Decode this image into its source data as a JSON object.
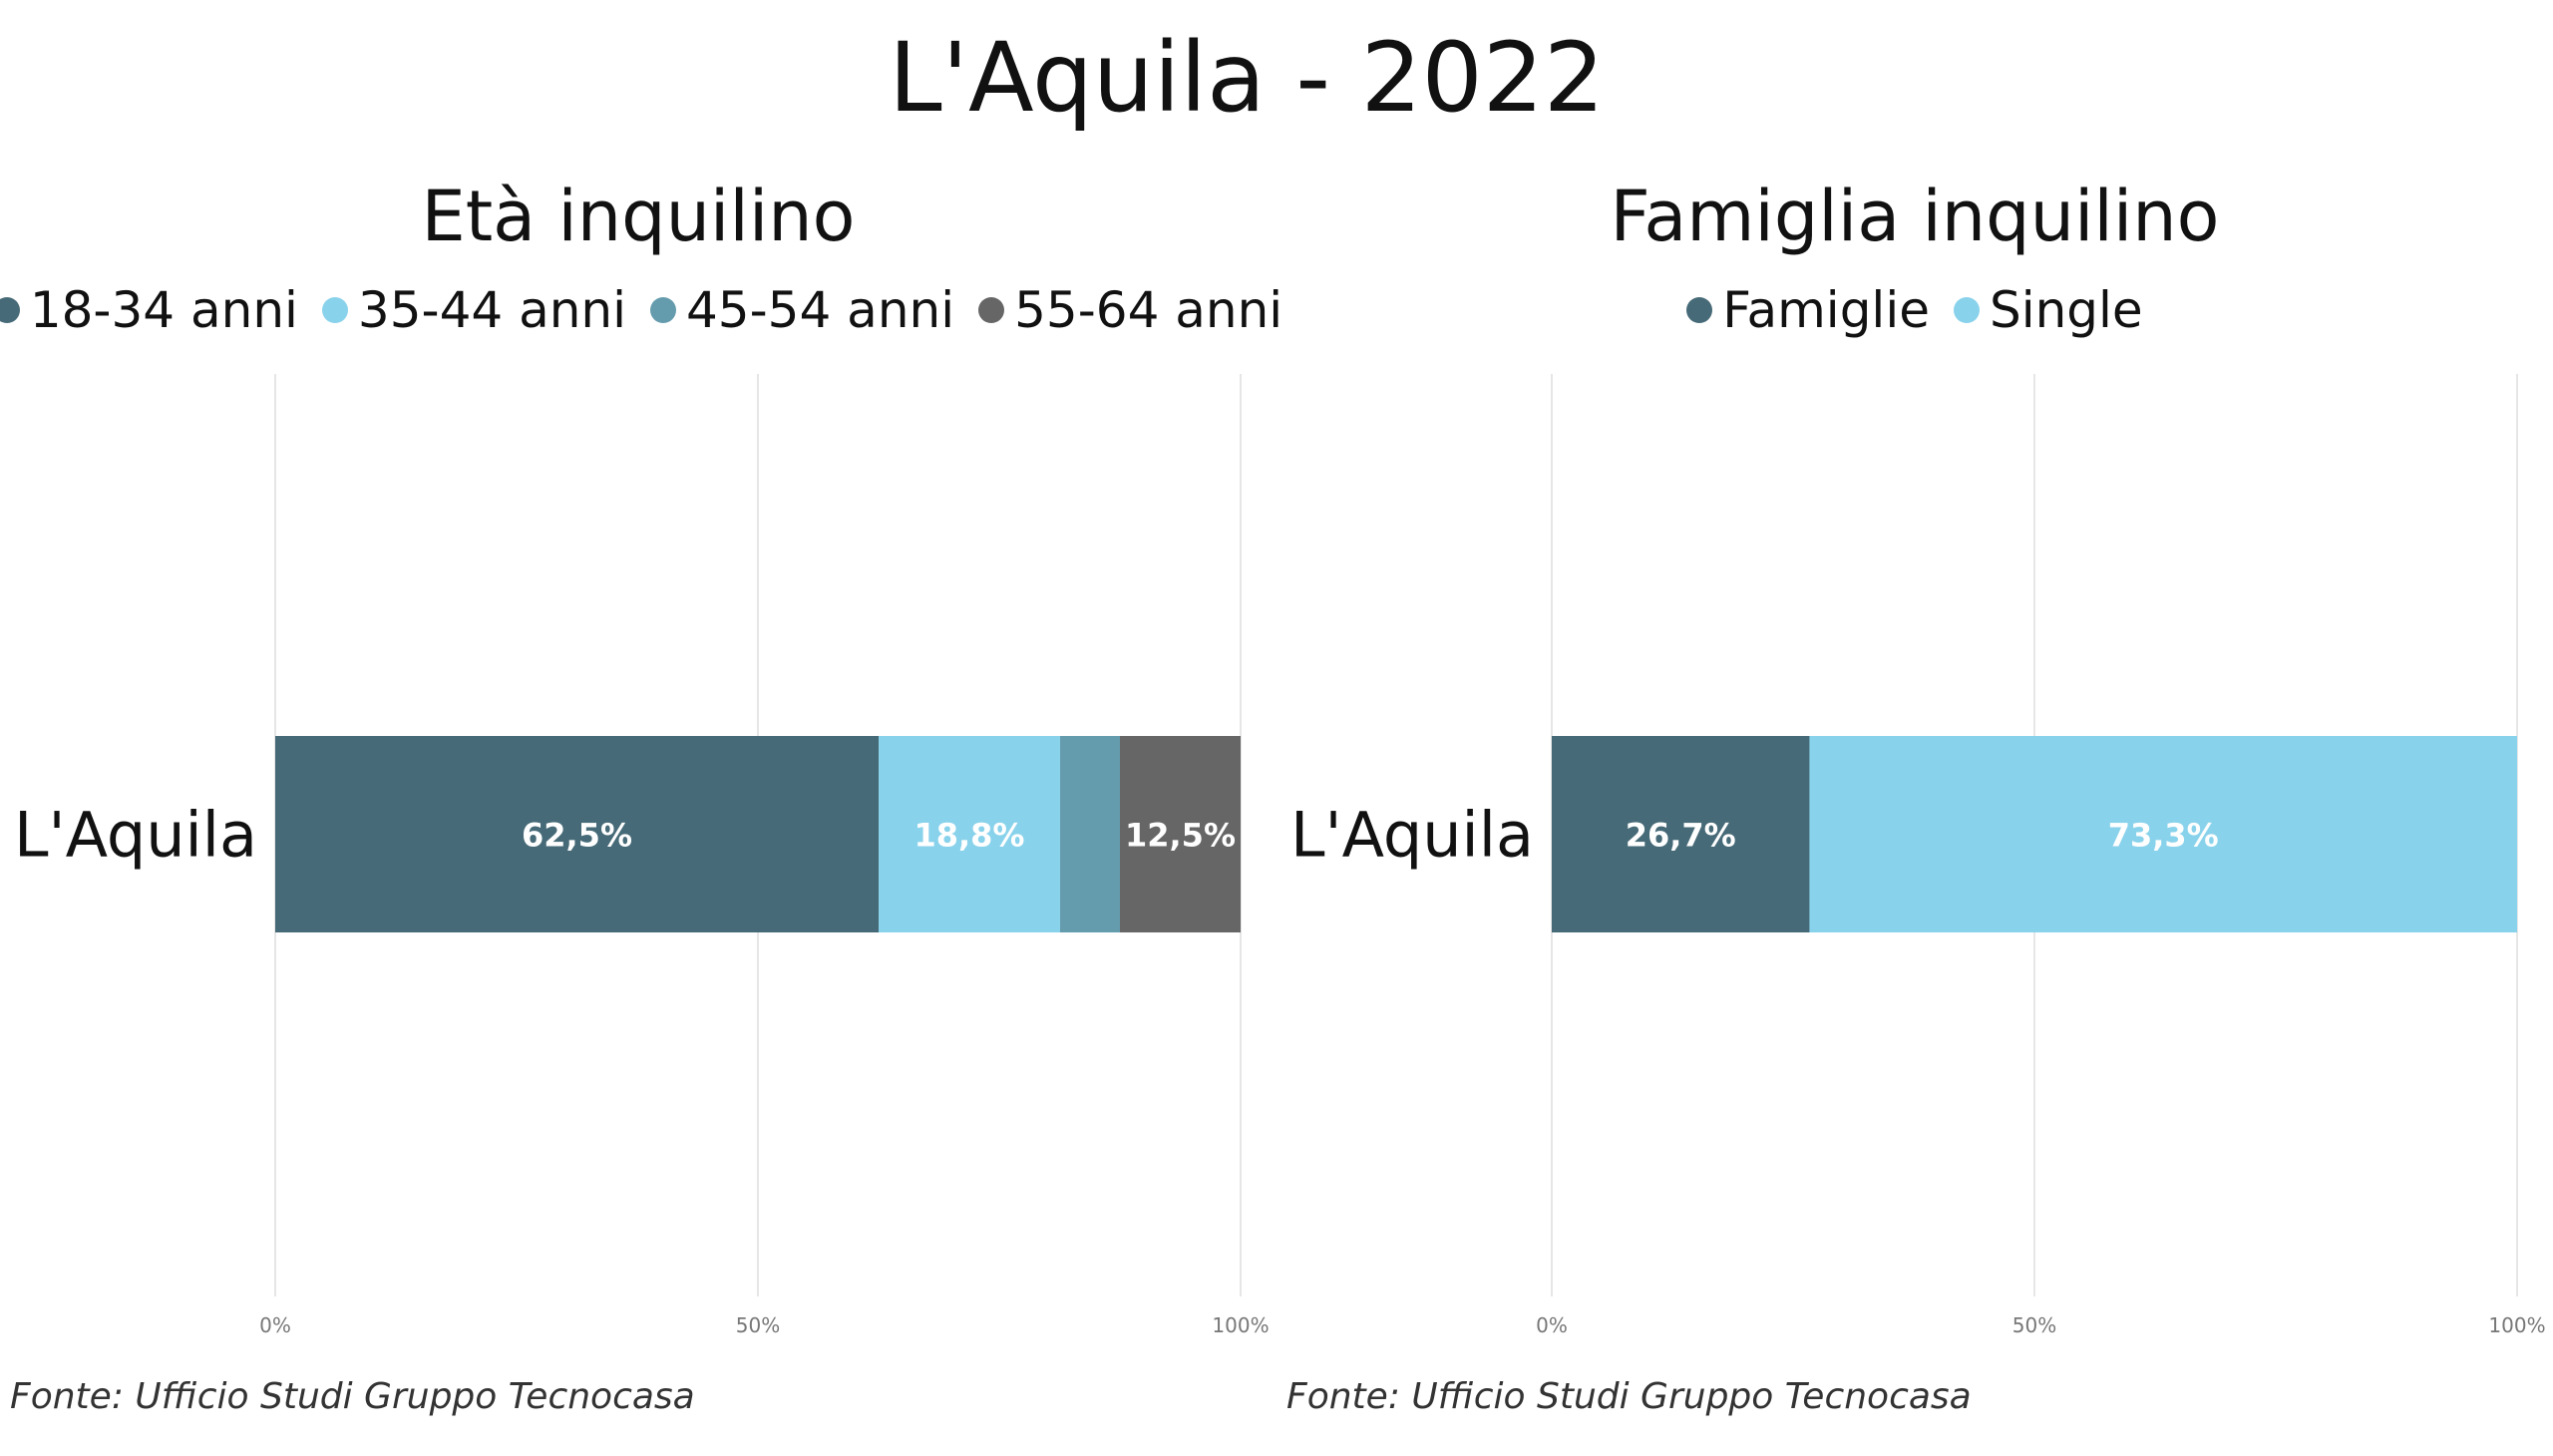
{
  "title": "L'Aquila - 2022",
  "footer": "Fonte: Ufficio Studi Gruppo Tecnocasa",
  "chart_data": [
    {
      "type": "bar",
      "orientation": "horizontal",
      "stacked": "percent",
      "title": "Età inquilino",
      "categories": [
        "L'Aquila"
      ],
      "series": [
        {
          "name": "18-34 anni",
          "values": [
            62.5
          ],
          "color": "#466A77",
          "label": "62,5%"
        },
        {
          "name": "35-44 anni",
          "values": [
            18.8
          ],
          "color": "#89D2EB",
          "label": "18,8%"
        },
        {
          "name": "45-54 anni",
          "values": [
            6.2
          ],
          "color": "#659CAD",
          "label": ""
        },
        {
          "name": "55-64 anni",
          "values": [
            12.5
          ],
          "color": "#666666",
          "label": "12,5%"
        }
      ],
      "xlim": [
        0,
        100
      ],
      "xticks": [
        "0%",
        "50%",
        "100%"
      ],
      "legend": "top",
      "grid": true
    },
    {
      "type": "bar",
      "orientation": "horizontal",
      "stacked": "percent",
      "title": "Famiglia inquilino",
      "categories": [
        "L'Aquila"
      ],
      "series": [
        {
          "name": "Famiglie",
          "values": [
            26.7
          ],
          "color": "#466A77",
          "label": "26,7%"
        },
        {
          "name": "Single",
          "values": [
            73.3
          ],
          "color": "#89D2EB",
          "label": "73,3%"
        }
      ],
      "xlim": [
        0,
        100
      ],
      "xticks": [
        "0%",
        "50%",
        "100%"
      ],
      "legend": "top",
      "grid": true
    }
  ]
}
